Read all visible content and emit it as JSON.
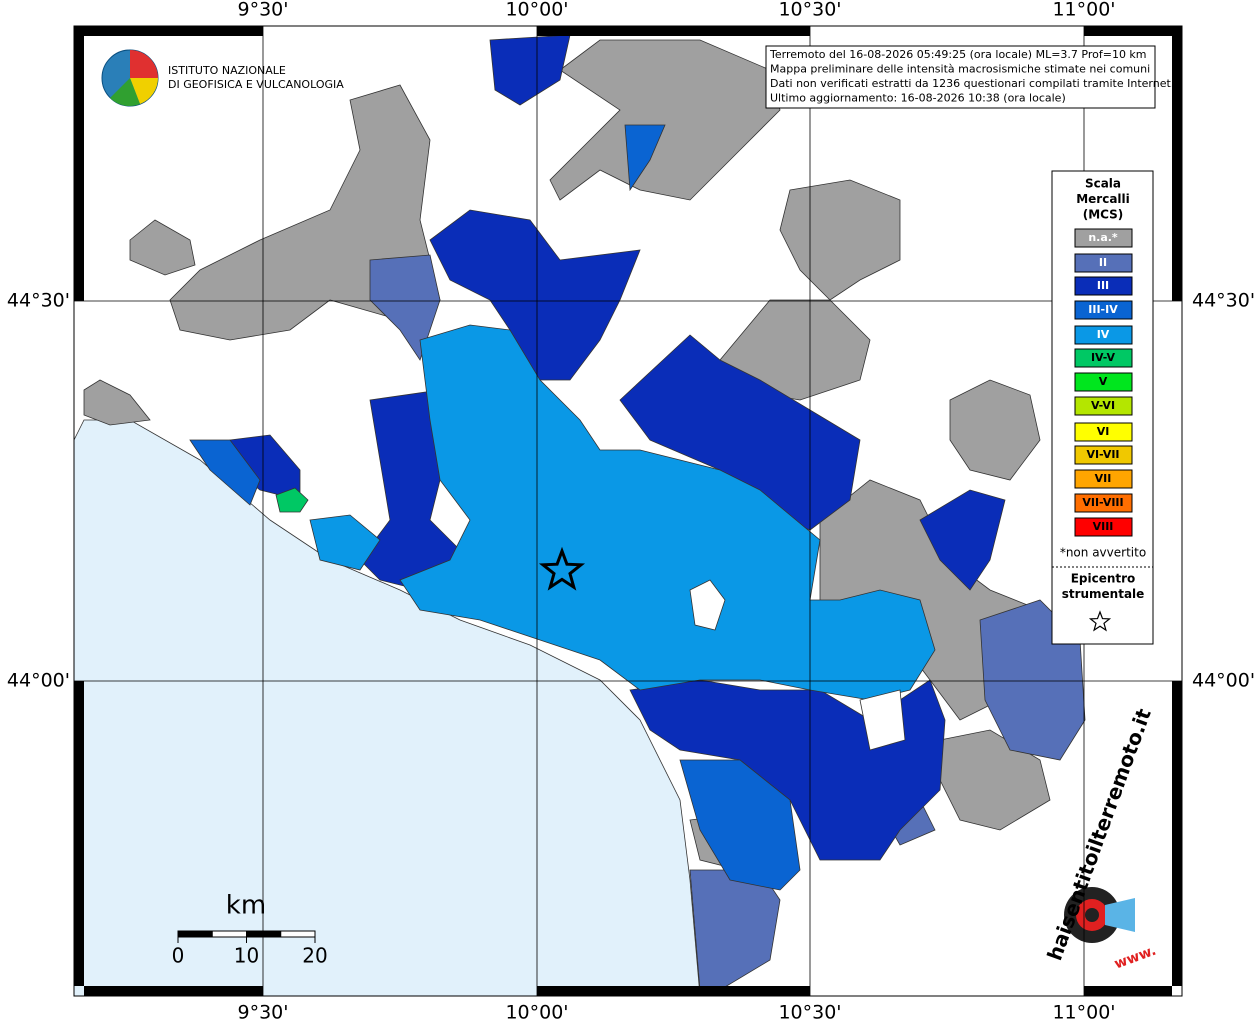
{
  "logo": {
    "line1": "ISTITUTO NAZIONALE",
    "line2": "DI GEOFISICA E VULCANOLOGIA"
  },
  "map": {
    "lon_labels": [
      "9°30'",
      "10°00'",
      "10°30'",
      "11°00'"
    ],
    "lat_labels": [
      "44°30'",
      "44°00'"
    ]
  },
  "info": {
    "lines": [
      "Terremoto del 16-08-2026 05:49:25 (ora locale) ML=3.7 Prof=10 km",
      "Mappa preliminare delle intensità macrosismiche stimate nei comuni",
      "Dati non verificati estratti da 1236 questionari compilati tramite Internet.",
      "Ultimo aggiornamento: 16-08-2026 10:38 (ora locale)"
    ]
  },
  "legend": {
    "title": [
      "Scala",
      "Mercalli",
      "(MCS)"
    ],
    "items": [
      {
        "label": "n.a.*",
        "color": "#a0a0a0"
      },
      {
        "label": "II",
        "color": "#5670b8"
      },
      {
        "label": "III",
        "color": "#0a2db8"
      },
      {
        "label": "III-IV",
        "color": "#0a64d2"
      },
      {
        "label": "IV",
        "color": "#0a98e6"
      },
      {
        "label": "IV-V",
        "color": "#00c864"
      },
      {
        "label": "V",
        "color": "#00e61e"
      },
      {
        "label": "V-VI",
        "color": "#b4e600"
      },
      {
        "label": "VI",
        "color": "#ffff00"
      },
      {
        "label": "VI-VII",
        "color": "#f0c800"
      },
      {
        "label": "VII",
        "color": "#ffa500"
      },
      {
        "label": "VII-VIII",
        "color": "#ff6e00"
      },
      {
        "label": "VIII",
        "color": "#ff0000"
      }
    ],
    "note": "*non avvertito",
    "epicenter": [
      "Epicentro",
      "strumentale"
    ]
  },
  "scale_bar": {
    "unit": "km",
    "ticks": [
      0,
      10,
      20
    ]
  },
  "site_logo": {
    "text": "haisentitoilterremoto.it",
    "www": "www."
  }
}
